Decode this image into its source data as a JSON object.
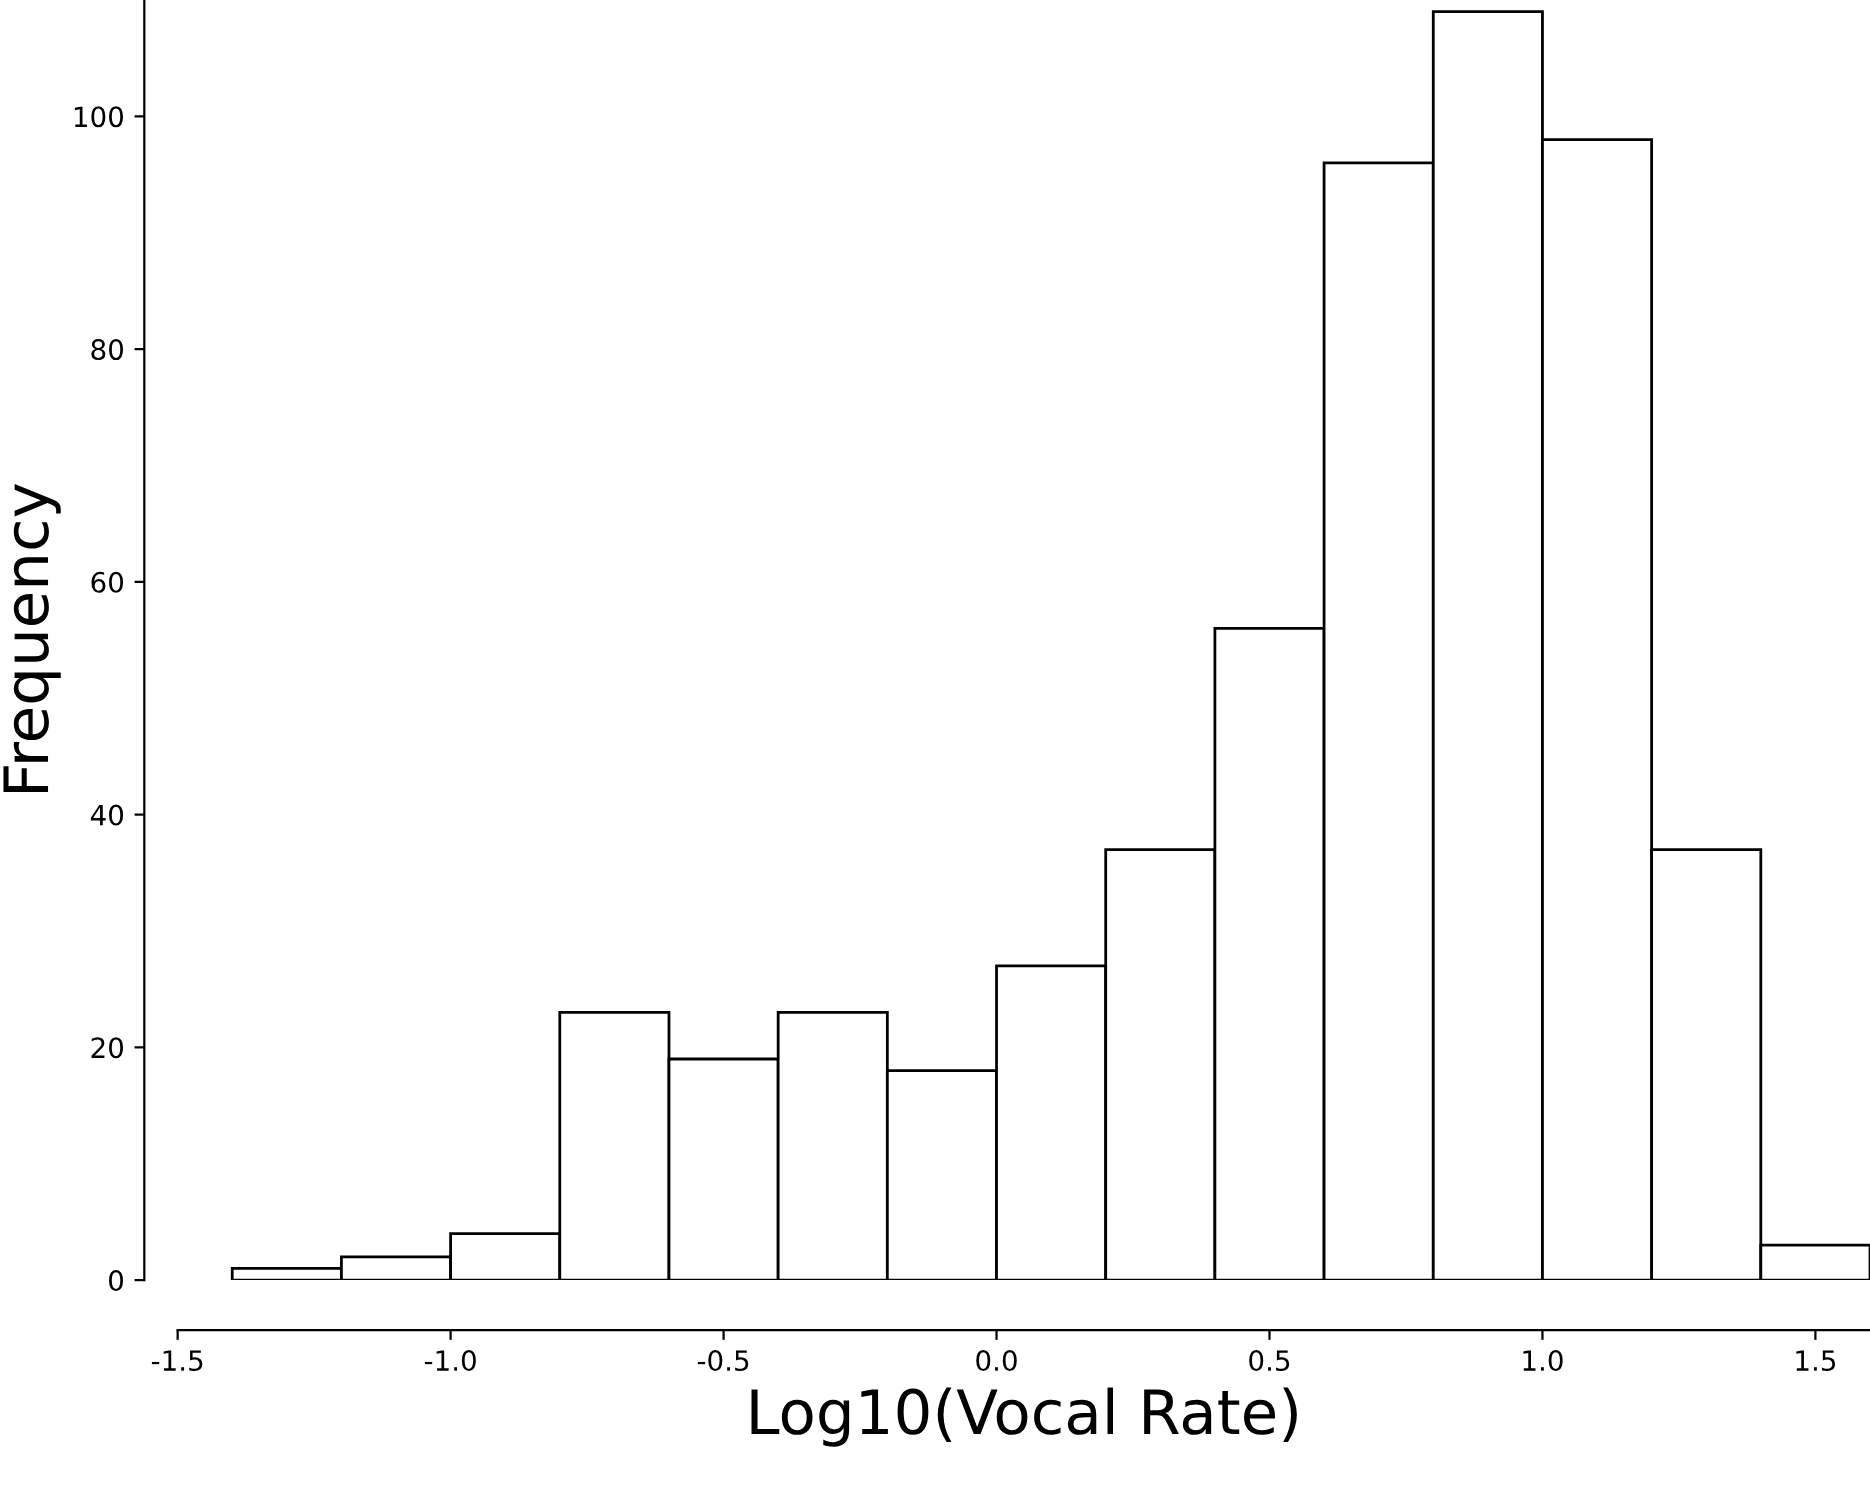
{
  "chart_data": {
    "type": "histogram",
    "xlabel": "Log10(Vocal Rate)",
    "ylabel": "Frequency",
    "bins": [
      -1.4,
      -1.2,
      -1.0,
      -0.8,
      -0.6,
      -0.4,
      -0.2,
      0.0,
      0.2,
      0.4,
      0.6,
      0.8,
      1.0,
      1.2,
      1.4,
      1.6
    ],
    "values": [
      1,
      2,
      4,
      23,
      19,
      23,
      18,
      27,
      37,
      56,
      96,
      109,
      98,
      37,
      3
    ],
    "color": "#ffffff",
    "xlim": [
      -1.5,
      1.6
    ],
    "ylim": [
      0,
      110
    ],
    "xticks": [
      {
        "value": -1.5,
        "label": "-1.5"
      },
      {
        "value": -1.0,
        "label": "-1.0"
      },
      {
        "value": -0.5,
        "label": "-0.5"
      },
      {
        "value": 0.0,
        "label": "0.0"
      },
      {
        "value": 0.5,
        "label": "0.5"
      },
      {
        "value": 1.0,
        "label": "1.0"
      },
      {
        "value": 1.5,
        "label": "1.5"
      }
    ],
    "yticks": [
      0,
      20,
      40,
      60,
      80,
      100
    ],
    "grid": false
  }
}
